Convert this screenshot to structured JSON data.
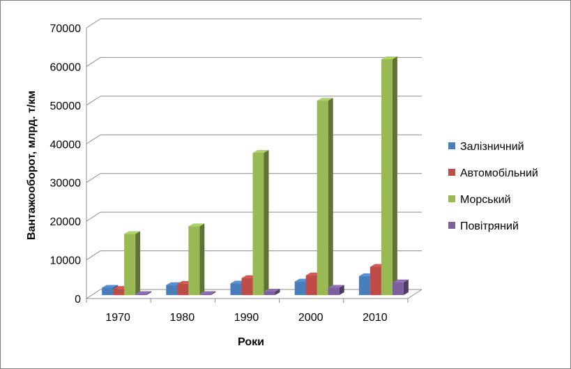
{
  "chart_data": {
    "type": "bar",
    "style": "3d-clustered-column",
    "title": "",
    "xlabel": "Роки",
    "ylabel": "Вантажооборот, млрд. т/км",
    "categories": [
      "1970",
      "1980",
      "1990",
      "2000",
      "2010"
    ],
    "ylim": [
      0,
      70000
    ],
    "yticks": [
      "0",
      "10000",
      "20000",
      "30000",
      "40000",
      "50000",
      "60000",
      "70000"
    ],
    "grid": true,
    "legend_position": "right",
    "series": [
      {
        "name": "Залізничний",
        "color": "#4a7ebb",
        "values": [
          1900,
          2600,
          3000,
          3500,
          4900
        ]
      },
      {
        "name": "Автомобільний",
        "color": "#be4b48",
        "values": [
          1600,
          2900,
          4400,
          5100,
          7300
        ]
      },
      {
        "name": "Морський",
        "color": "#98b954",
        "values": [
          15800,
          17800,
          36800,
          50300,
          61000
        ]
      },
      {
        "name": "Повітряний",
        "color": "#7d60a0",
        "values": [
          0,
          0,
          900,
          1900,
          3300
        ]
      }
    ]
  }
}
